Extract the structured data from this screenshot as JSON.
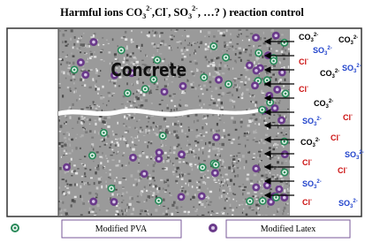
{
  "title": [
    "Harmful ions CO",
    "3",
    "2-",
    ",Cl",
    "-",
    ", SO",
    "3",
    "2-",
    ", …? ) reaction control"
  ],
  "concrete_label": "Concrete",
  "ions": [
    {
      "base": "CO",
      "sub": "3",
      "sup": "2-",
      "color": "#000000"
    },
    {
      "base": "CO",
      "sub": "3",
      "sup": "2-",
      "color": "#000000"
    },
    {
      "base": "SO",
      "sub": "3",
      "sup": "2-",
      "color": "#2244cc"
    },
    {
      "base": "Cl",
      "sub": "",
      "sup": "-",
      "color": "#cc1111"
    },
    {
      "base": "CO",
      "sub": "3",
      "sup": "2-",
      "color": "#000000"
    },
    {
      "base": "SO",
      "sub": "3",
      "sup": "2-",
      "color": "#2244cc"
    },
    {
      "base": "Cl",
      "sub": "",
      "sup": "-",
      "color": "#cc1111"
    },
    {
      "base": "CO",
      "sub": "3",
      "sup": "2-",
      "color": "#000000"
    },
    {
      "base": "SO",
      "sub": "3",
      "sup": "2-",
      "color": "#2244cc"
    },
    {
      "base": "Cl",
      "sub": "",
      "sup": "-",
      "color": "#cc1111"
    },
    {
      "base": "CO",
      "sub": "3",
      "sup": "2-",
      "color": "#000000"
    },
    {
      "base": "Cl",
      "sub": "",
      "sup": "-",
      "color": "#cc1111"
    },
    {
      "base": "SO",
      "sub": "3",
      "sup": "2-",
      "color": "#2244cc"
    },
    {
      "base": "Cl",
      "sub": "",
      "sup": "-",
      "color": "#cc1111"
    },
    {
      "base": "Cl",
      "sub": "",
      "sup": "-",
      "color": "#cc1111"
    },
    {
      "base": "SO",
      "sub": "3",
      "sup": "2-",
      "color": "#2244cc"
    },
    {
      "base": "Cl",
      "sub": "",
      "sup": "-",
      "color": "#cc1111"
    },
    {
      "base": "SO",
      "sub": "3",
      "sup": "2-",
      "color": "#2244cc"
    }
  ],
  "legend": [
    "Modified PVA",
    "Modified Latex"
  ]
}
